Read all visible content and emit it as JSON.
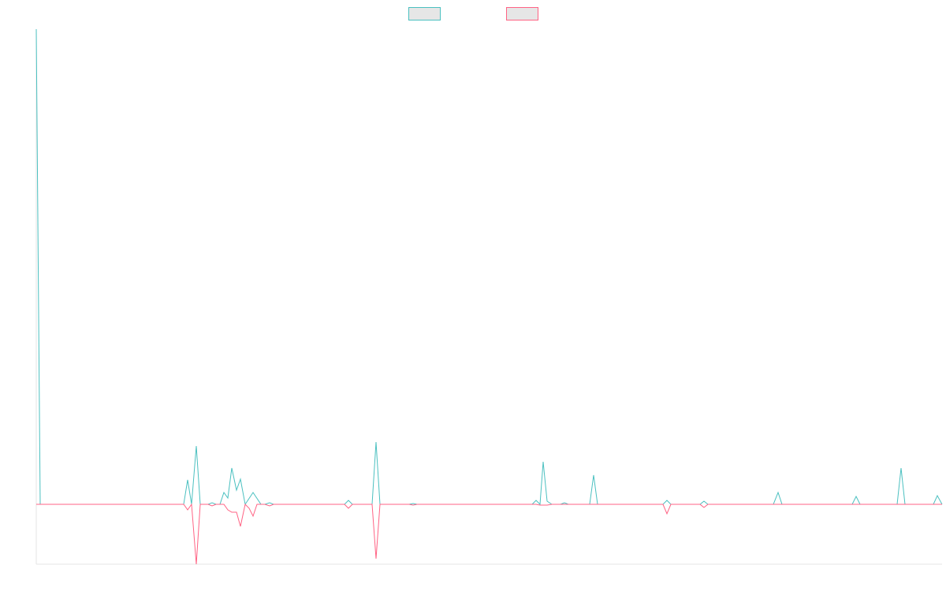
{
  "chart_data": {
    "type": "line",
    "xlim": [
      0,
      1149
    ],
    "ylim": [
      -76,
      603
    ],
    "legend": "top",
    "series": [
      {
        "color": "#4bc0c0",
        "x": [
          0,
          5,
          187,
          192,
          197,
          203,
          208,
          218,
          223,
          228,
          233,
          238,
          243,
          248,
          254,
          259,
          265,
          275,
          285,
          290,
          296,
          301,
          391,
          396,
          401,
          426,
          431,
          436,
          473,
          478,
          483,
          629,
          634,
          639,
          643,
          648,
          654,
          665,
          670,
          675,
          702,
          707,
          712,
          795,
          800,
          805,
          842,
          847,
          852,
          935,
          941,
          946,
          1035,
          1040,
          1045,
          1092,
          1097,
          1102,
          1138,
          1143,
          1149
        ],
        "values": [
          603,
          0,
          0,
          31,
          0,
          74,
          0,
          0,
          2,
          0,
          0,
          15,
          8,
          46,
          18,
          32,
          0,
          15,
          0,
          0,
          2,
          0,
          0,
          5,
          0,
          0,
          79,
          0,
          0,
          1,
          0,
          0,
          5,
          0,
          54,
          4,
          0,
          0,
          2,
          0,
          0,
          37,
          0,
          0,
          5,
          0,
          0,
          4,
          0,
          0,
          15,
          0,
          0,
          10,
          0,
          0,
          46,
          0,
          0,
          11,
          0
        ]
      },
      {
        "color": "#ff6384",
        "x": [
          0,
          187,
          192,
          197,
          203,
          208,
          218,
          223,
          228,
          238,
          243,
          248,
          254,
          259,
          265,
          270,
          275,
          280,
          290,
          296,
          301,
          391,
          396,
          401,
          426,
          431,
          436,
          473,
          478,
          483,
          634,
          639,
          648,
          654,
          795,
          800,
          805,
          842,
          847,
          852,
          1149
        ],
        "values": [
          0,
          0,
          -7,
          0,
          -76,
          0,
          0,
          -2,
          0,
          0,
          -7,
          -10,
          -10,
          -28,
          0,
          -5,
          -15,
          0,
          0,
          -2,
          0,
          0,
          -5,
          0,
          0,
          -69,
          0,
          0,
          -1,
          0,
          0,
          -1,
          -1,
          0,
          0,
          -12,
          0,
          0,
          -4,
          0,
          0
        ]
      }
    ]
  }
}
